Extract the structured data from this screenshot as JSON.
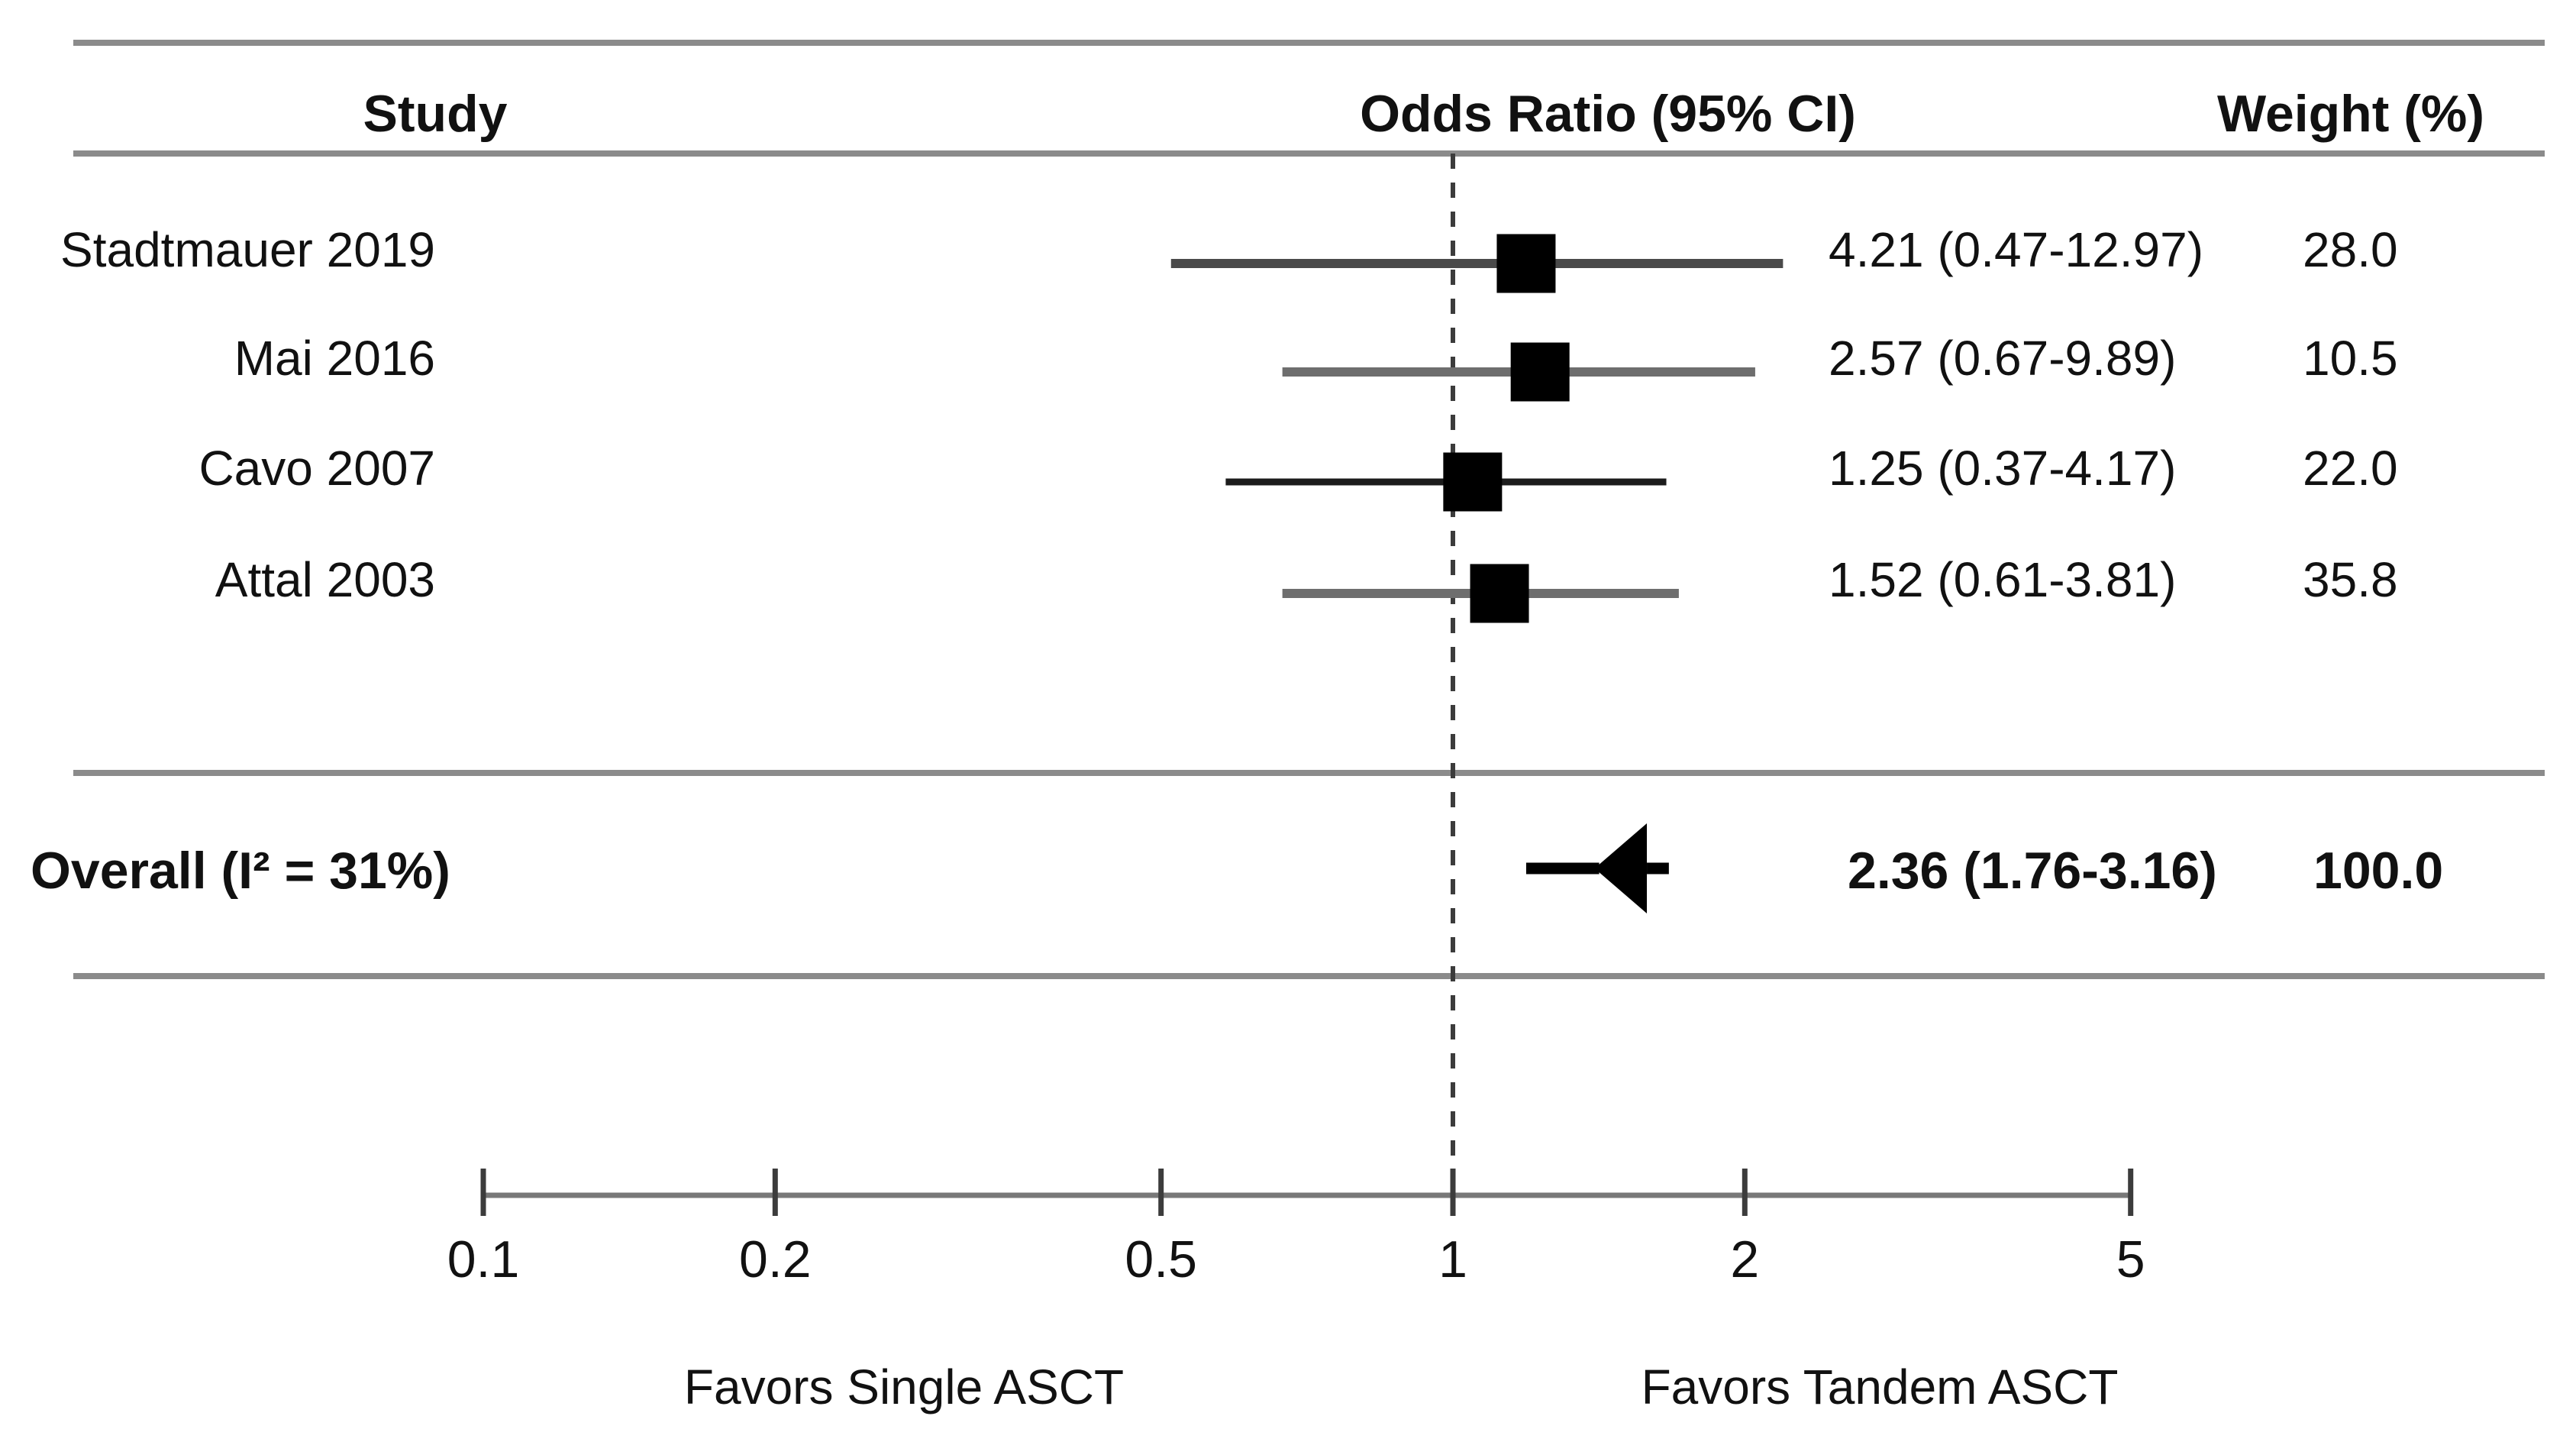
{
  "figure": {
    "background": "#ffffff",
    "text_color": "#111111",
    "rule_color": "#8b8b8b",
    "axis_color": "#787878",
    "tick_color": "#3c3c3c",
    "reference_line_color": "#3c3c3c",
    "marker_color": "#000000"
  },
  "header": {
    "study": "Study",
    "or": "Odds Ratio (95% CI)",
    "weight": "Weight (%)"
  },
  "chart_data": {
    "type": "forest",
    "x_scale": "log10",
    "axis": {
      "ticks": [
        0.1,
        0.2,
        0.5,
        1,
        2,
        5
      ],
      "tick_labels": [
        "0.1",
        "0.2",
        "0.5",
        "1",
        "2",
        "5"
      ],
      "range": [
        0.1,
        5
      ],
      "reference_line": 1,
      "left_label": "Favors Single ASCT",
      "right_label": "Favors Tandem ASCT"
    },
    "studies": [
      {
        "label": "Stadtmauer 2019",
        "or": 4.21,
        "ci_low": 0.47,
        "ci_high": 12.97,
        "or_text": "4.21 (0.47-12.97)",
        "weight_pct": 28.0,
        "weight_text": "28.0",
        "plot": {
          "center": 1.19,
          "lo": 0.512,
          "hi": 2.19,
          "stroke": "#4a4a4a",
          "stroke_w": 12
        }
      },
      {
        "label": "Mai 2016",
        "or": 2.57,
        "ci_low": 0.67,
        "ci_high": 9.89,
        "or_text": "2.57 (0.67-9.89)",
        "weight_pct": 10.5,
        "weight_text": "10.5",
        "plot": {
          "center": 1.23,
          "lo": 0.667,
          "hi": 2.05,
          "stroke": "#6e6e6e",
          "stroke_w": 12
        }
      },
      {
        "label": "Cavo 2007",
        "or": 1.25,
        "ci_low": 0.37,
        "ci_high": 4.17,
        "or_text": "1.25 (0.37-4.17)",
        "weight_pct": 22.0,
        "weight_text": "22.0",
        "plot": {
          "center": 1.048,
          "lo": 0.583,
          "hi": 1.66,
          "stroke": "#1c1c1c",
          "stroke_w": 9
        }
      },
      {
        "label": "Attal 2003",
        "or": 1.52,
        "ci_low": 0.61,
        "ci_high": 3.81,
        "or_text": "1.52 (0.61-3.81)",
        "weight_pct": 35.8,
        "weight_text": "35.8",
        "plot": {
          "center": 1.117,
          "lo": 0.667,
          "hi": 1.71,
          "stroke": "#6e6e6e",
          "stroke_w": 12
        }
      }
    ],
    "overall": {
      "label": "Overall (I² = 31%)",
      "i_squared": "31%",
      "or": 2.36,
      "ci_low": 1.76,
      "ci_high": 3.16,
      "or_text": "2.36 (1.76-3.16)",
      "weight_text": "100.0",
      "plot": {
        "line_lo": 1.19,
        "line_hi": 1.67,
        "apex": 1.4,
        "back": 1.585
      }
    }
  }
}
